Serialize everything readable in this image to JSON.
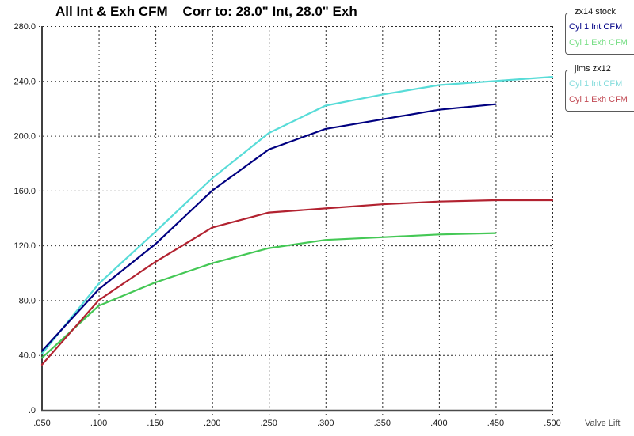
{
  "title": "All Int & Exh CFM    Corr to: 28.0\" Int, 28.0\" Exh",
  "chart_data": {
    "type": "line",
    "title": "All Int & Exh CFM    Corr to: 28.0\" Int, 28.0\" Exh",
    "xlabel": "Valve Lift",
    "ylabel": "",
    "xlim": [
      0.05,
      0.5
    ],
    "ylim": [
      0,
      280
    ],
    "grid": true,
    "legend_position": "top-right",
    "x_ticks": [
      {
        "v": 0.05,
        "label": ".050"
      },
      {
        "v": 0.1,
        "label": ".100"
      },
      {
        "v": 0.15,
        "label": ".150"
      },
      {
        "v": 0.2,
        "label": ".200"
      },
      {
        "v": 0.25,
        "label": ".250"
      },
      {
        "v": 0.3,
        "label": ".300"
      },
      {
        "v": 0.35,
        "label": ".350"
      },
      {
        "v": 0.4,
        "label": ".400"
      },
      {
        "v": 0.45,
        "label": ".450"
      },
      {
        "v": 0.5,
        "label": ".500"
      }
    ],
    "y_ticks": [
      {
        "v": 280,
        "label": "280.0"
      },
      {
        "v": 240,
        "label": "240.0"
      },
      {
        "v": 200,
        "label": "200.0"
      },
      {
        "v": 160,
        "label": "160.0"
      },
      {
        "v": 120,
        "label": "120.0"
      },
      {
        "v": 80,
        "label": "80.0"
      },
      {
        "v": 40,
        "label": "40.0"
      },
      {
        "v": 0,
        "label": ".0"
      }
    ],
    "series": [
      {
        "id": "jims-zx12-int",
        "group": "jims zx12",
        "name": "Cyl 1 Int CFM",
        "color": "#58DCD8",
        "x": [
          0.05,
          0.1,
          0.15,
          0.2,
          0.25,
          0.3,
          0.35,
          0.4,
          0.45,
          0.5
        ],
        "values": [
          41,
          92,
          130,
          169,
          202,
          222,
          230,
          237,
          240,
          243
        ]
      },
      {
        "id": "zx14-stock-exh",
        "group": "zx14 stock",
        "name": "Cyl 1 Exh CFM",
        "color": "#44C855",
        "x": [
          0.05,
          0.1,
          0.15,
          0.2,
          0.25,
          0.3,
          0.35,
          0.4,
          0.45
        ],
        "values": [
          38,
          76,
          93,
          107,
          118,
          124,
          126,
          128,
          129
        ]
      },
      {
        "id": "zx14-stock-int",
        "group": "zx14 stock",
        "name": "Cyl 1 Int CFM",
        "color": "#000080",
        "x": [
          0.05,
          0.1,
          0.15,
          0.2,
          0.25,
          0.3,
          0.35,
          0.4,
          0.45
        ],
        "values": [
          43,
          88,
          121,
          160,
          190,
          205,
          212,
          219,
          223
        ]
      },
      {
        "id": "jims-zx12-exh",
        "group": "jims zx12",
        "name": "Cyl 1 Exh CFM",
        "color": "#B22230",
        "x": [
          0.05,
          0.1,
          0.15,
          0.2,
          0.25,
          0.3,
          0.35,
          0.4,
          0.45,
          0.5
        ],
        "values": [
          33,
          80,
          108,
          133,
          144,
          147,
          150,
          152,
          153,
          153
        ]
      }
    ]
  },
  "legend": {
    "groups": [
      {
        "title": "zx14 stock",
        "items": [
          {
            "label": "Cyl 1 Int CFM",
            "color": "#000085"
          },
          {
            "label": "Cyl 1 Exh CFM",
            "color": "#77DE85"
          }
        ]
      },
      {
        "title": "jims zx12",
        "items": [
          {
            "label": "Cyl 1 Int CFM",
            "color": "#85DCDC"
          },
          {
            "label": "Cyl 1 Exh CFM",
            "color": "#C24B55"
          }
        ]
      }
    ]
  },
  "axes": {
    "x_label": "Valve Lift"
  }
}
